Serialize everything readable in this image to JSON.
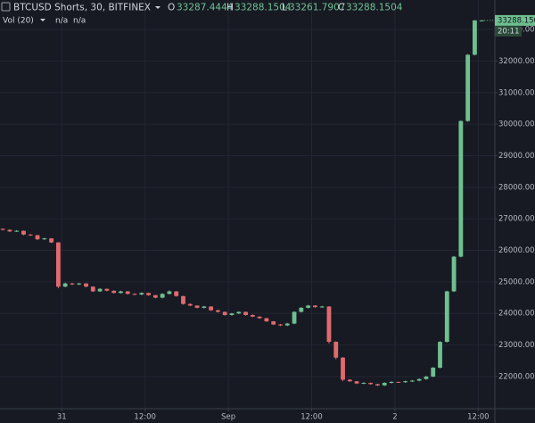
{
  "chart_data": {
    "type": "candlestick",
    "header": {
      "symbol": "BTCUSD Shorts, 30, BITFINEX",
      "o_label": "O",
      "open": 33287.4444,
      "h_label": "H",
      "high": 33288.1504,
      "l_label": "L",
      "low": 33261.7907,
      "c_label": "C",
      "close": 33288.1504,
      "volume_label": "Vol (20)",
      "volume_value_1": "n/a",
      "volume_value_2": "n/a"
    },
    "countdown": "20:11",
    "up_color": "#6fbf8f",
    "down_color": "#e06a6e",
    "grid": true,
    "xlim": [
      -0.4,
      70.9
    ],
    "xticks": [
      {
        "value": 8.5,
        "label": "31"
      },
      {
        "value": 20.5,
        "label": "12:00"
      },
      {
        "value": 32.5,
        "label": "Sep"
      },
      {
        "value": 44.5,
        "label": "12:00"
      },
      {
        "value": 56.5,
        "label": "2"
      },
      {
        "value": 68.5,
        "label": "12:00"
      }
    ],
    "ylim": [
      20980,
      33370
    ],
    "yticks": [
      {
        "value": 22000,
        "label": "22000.0000"
      },
      {
        "value": 23000,
        "label": "23000.0000"
      },
      {
        "value": 24000,
        "label": "24000.0000"
      },
      {
        "value": 25000,
        "label": "25000.0000"
      },
      {
        "value": 26000,
        "label": "26000.0000"
      },
      {
        "value": 27000,
        "label": "27000.0000"
      },
      {
        "value": 28000,
        "label": "28000.0000"
      },
      {
        "value": 29000,
        "label": "29000.0000"
      },
      {
        "value": 30000,
        "label": "30000.0000"
      },
      {
        "value": 31000,
        "label": "31000.0000"
      },
      {
        "value": 32000,
        "label": "32000.0000"
      },
      {
        "value": 33000,
        "label": "33000.0000"
      }
    ],
    "open": [
      26680,
      26650,
      26600,
      26620,
      26500,
      26480,
      26350,
      26380,
      26250,
      24850,
      24950,
      24920,
      24950,
      24850,
      24700,
      24780,
      24720,
      24650,
      24700,
      24620,
      24600,
      24650,
      24580,
      24500,
      24620,
      24700,
      24550,
      24300,
      24250,
      24180,
      24220,
      24100,
      24050,
      23950,
      24000,
      24050,
      23950,
      23900,
      23850,
      23750,
      23650,
      23620,
      23680,
      24050,
      24180,
      24250,
      24200,
      24220,
      23100,
      22600,
      21900,
      21850,
      21780,
      21800,
      21760,
      21720,
      21800,
      21830,
      21820,
      21850,
      21870,
      21920,
      22000,
      22280,
      23100,
      24700,
      25800,
      30100,
      32200,
      33287.4444
    ],
    "high": [
      26700,
      26670,
      26640,
      26630,
      26520,
      26490,
      26400,
      26390,
      26260,
      24980,
      24970,
      24970,
      24960,
      24860,
      24800,
      24790,
      24730,
      24720,
      24710,
      24640,
      24670,
      24660,
      24590,
      24640,
      24730,
      24710,
      24560,
      24320,
      24260,
      24240,
      24230,
      24120,
      24060,
      24020,
      24070,
      24060,
      23970,
      23910,
      23860,
      23760,
      23670,
      23700,
      24070,
      24200,
      24270,
      24260,
      24240,
      24230,
      23120,
      22620,
      21920,
      21860,
      21820,
      21810,
      21770,
      21820,
      21850,
      21840,
      21870,
      21890,
      21940,
      22020,
      22300,
      23120,
      24720,
      25820,
      30120,
      32220,
      33300,
      33288.1504
    ],
    "low": [
      26630,
      26580,
      26580,
      26480,
      26460,
      26330,
      26330,
      26230,
      24800,
      24830,
      24900,
      24900,
      24830,
      24680,
      24680,
      24700,
      24630,
      24630,
      24600,
      24580,
      24580,
      24560,
      24480,
      24480,
      24600,
      24530,
      24280,
      24230,
      24160,
      24160,
      24080,
      24030,
      23930,
      23930,
      23980,
      23930,
      23880,
      23830,
      23730,
      23630,
      23600,
      23600,
      23660,
      24030,
      24160,
      24180,
      24180,
      23050,
      22550,
      21850,
      21830,
      21760,
      21760,
      21740,
      21700,
      21700,
      21780,
      21800,
      21800,
      21830,
      21850,
      21900,
      21980,
      22260,
      23080,
      24680,
      25780,
      30080,
      32180,
      33261.7907
    ],
    "close": [
      26650,
      26600,
      26620,
      26500,
      26480,
      26350,
      26380,
      26250,
      24850,
      24950,
      24920,
      24950,
      24850,
      24700,
      24780,
      24720,
      24650,
      24700,
      24620,
      24600,
      24650,
      24580,
      24500,
      24620,
      24700,
      24550,
      24300,
      24250,
      24180,
      24220,
      24100,
      24050,
      23950,
      24000,
      24050,
      23950,
      23900,
      23850,
      23750,
      23650,
      23620,
      23680,
      24050,
      24180,
      24250,
      24200,
      24220,
      23100,
      22600,
      21900,
      21850,
      21780,
      21800,
      21760,
      21720,
      21800,
      21830,
      21820,
      21850,
      21870,
      21920,
      22000,
      22280,
      23100,
      24700,
      25800,
      30100,
      32200,
      33287.4444,
      33288.1504
    ]
  }
}
